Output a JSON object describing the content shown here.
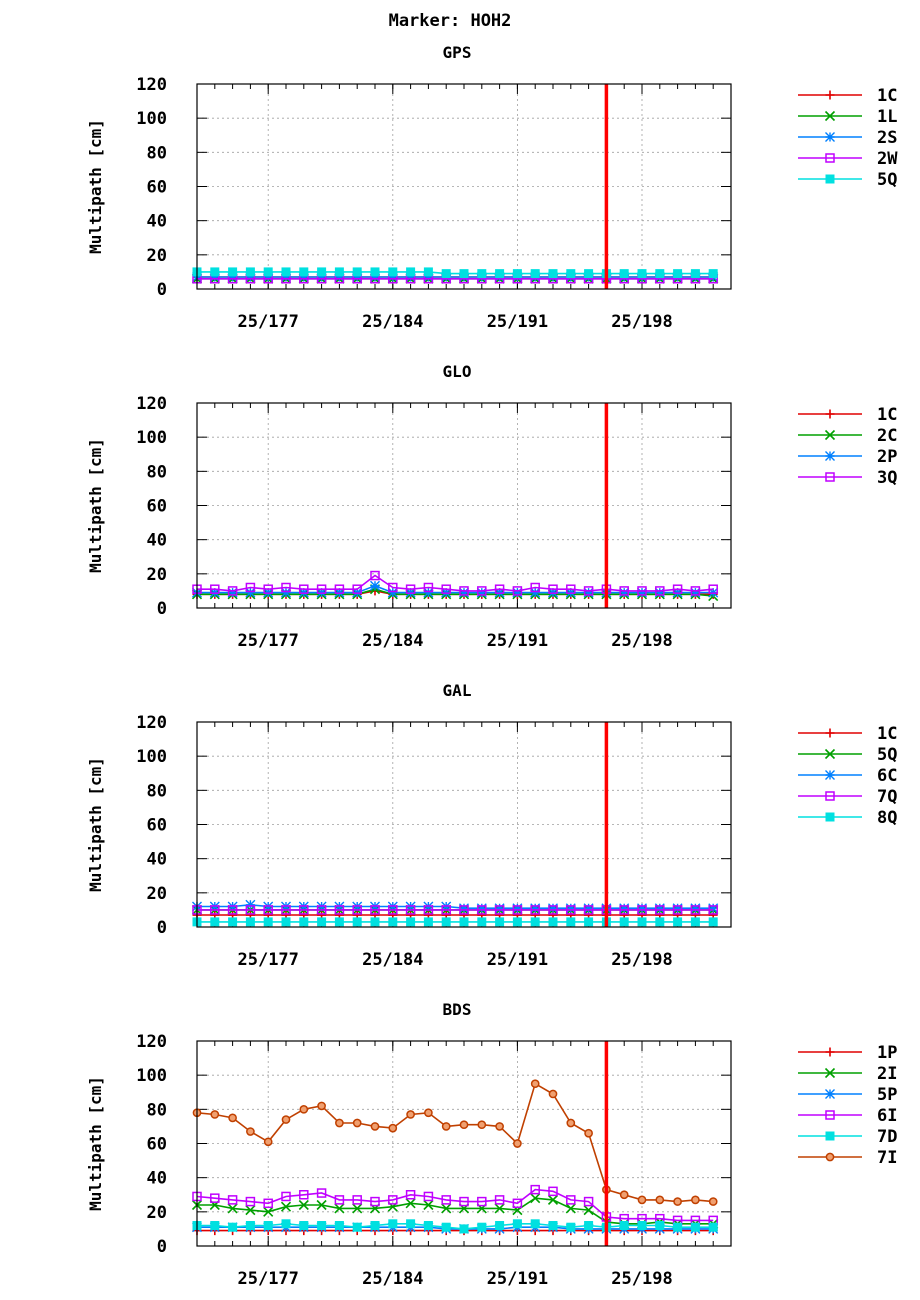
{
  "figure_title": "Marker: HOH2",
  "colors": {
    "red": "#e00000",
    "green": "#00a000",
    "blue": "#0080ff",
    "magenta": "#c000ff",
    "cyan": "#00e0e0",
    "brown": "#c04000",
    "marker_line": "#ff0000",
    "grid": "#a0a0a0"
  },
  "chart_data": [
    {
      "type": "line",
      "title": "GPS",
      "ylabel": "Multipath [cm]",
      "xlabel": "",
      "xlim": [
        173,
        203
      ],
      "ylim": [
        0,
        120
      ],
      "xticks": [
        177,
        184,
        191,
        198
      ],
      "xtick_labels": [
        "25/177",
        "25/184",
        "25/191",
        "25/198"
      ],
      "yticks": [
        0,
        20,
        40,
        60,
        80,
        100,
        120
      ],
      "ytick_labels": [
        "0",
        "20",
        "40",
        "60",
        "80",
        "100",
        "120"
      ],
      "vline": 196,
      "grid": true,
      "legend_position": "right",
      "x": [
        173,
        174,
        175,
        176,
        177,
        178,
        179,
        180,
        181,
        182,
        183,
        184,
        185,
        186,
        187,
        188,
        189,
        190,
        191,
        192,
        193,
        194,
        195,
        196,
        197,
        198,
        199,
        200,
        201,
        202
      ],
      "series": [
        {
          "name": "1C",
          "color": "red",
          "marker": "plus",
          "values": [
            7,
            7,
            7,
            7,
            7,
            7,
            7,
            7,
            7,
            7,
            7,
            7,
            7,
            7,
            7,
            7,
            7,
            7,
            7,
            7,
            7,
            7,
            7,
            7,
            7,
            7,
            7,
            7,
            7,
            7
          ]
        },
        {
          "name": "1L",
          "color": "green",
          "marker": "x",
          "values": [
            6,
            6,
            6,
            6,
            6,
            6,
            6,
            6,
            6,
            6,
            6,
            6,
            6,
            6,
            6,
            6,
            6,
            6,
            6,
            6,
            6,
            6,
            6,
            6,
            6,
            6,
            6,
            6,
            6,
            6
          ]
        },
        {
          "name": "2S",
          "color": "blue",
          "marker": "asterisk",
          "values": [
            7,
            7,
            7,
            7,
            7,
            7,
            7,
            7,
            7,
            7,
            7,
            7,
            7,
            7,
            7,
            7,
            7,
            7,
            7,
            7,
            7,
            7,
            7,
            7,
            7,
            7,
            7,
            7,
            7,
            7
          ]
        },
        {
          "name": "2W",
          "color": "magenta",
          "marker": "open-square",
          "values": [
            6,
            6,
            6,
            6,
            6,
            6,
            6,
            6,
            6,
            6,
            6,
            6,
            6,
            6,
            6,
            6,
            6,
            6,
            6,
            6,
            6,
            6,
            6,
            6,
            6,
            6,
            6,
            6,
            6,
            6
          ]
        },
        {
          "name": "5Q",
          "color": "cyan",
          "marker": "filled-square",
          "values": [
            10,
            10,
            10,
            10,
            10,
            10,
            10,
            10,
            10,
            10,
            10,
            10,
            10,
            10,
            9,
            9,
            9,
            9,
            9,
            9,
            9,
            9,
            9,
            9,
            9,
            9,
            9,
            9,
            9,
            9
          ]
        }
      ]
    },
    {
      "type": "line",
      "title": "GLO",
      "ylabel": "Multipath [cm]",
      "xlabel": "",
      "xlim": [
        173,
        203
      ],
      "ylim": [
        0,
        120
      ],
      "xticks": [
        177,
        184,
        191,
        198
      ],
      "xtick_labels": [
        "25/177",
        "25/184",
        "25/191",
        "25/198"
      ],
      "yticks": [
        0,
        20,
        40,
        60,
        80,
        100,
        120
      ],
      "ytick_labels": [
        "0",
        "20",
        "40",
        "60",
        "80",
        "100",
        "120"
      ],
      "vline": 196,
      "grid": true,
      "legend_position": "right",
      "x": [
        173,
        174,
        175,
        176,
        177,
        178,
        179,
        180,
        181,
        182,
        183,
        184,
        185,
        186,
        187,
        188,
        189,
        190,
        191,
        192,
        193,
        194,
        195,
        196,
        197,
        198,
        199,
        200,
        201,
        202
      ],
      "series": [
        {
          "name": "1C",
          "color": "red",
          "marker": "plus",
          "values": [
            8,
            8,
            8,
            8,
            8,
            8,
            8,
            8,
            8,
            8,
            10,
            8,
            8,
            8,
            8,
            8,
            8,
            8,
            8,
            8,
            8,
            8,
            8,
            8,
            8,
            8,
            8,
            8,
            8,
            8
          ]
        },
        {
          "name": "2C",
          "color": "green",
          "marker": "x",
          "values": [
            8,
            8,
            8,
            8,
            8,
            8,
            8,
            8,
            8,
            8,
            11,
            8,
            8,
            8,
            8,
            8,
            8,
            8,
            8,
            8,
            8,
            8,
            8,
            8,
            8,
            8,
            8,
            8,
            8,
            7
          ]
        },
        {
          "name": "2P",
          "color": "blue",
          "marker": "asterisk",
          "values": [
            9,
            9,
            9,
            9,
            9,
            9,
            9,
            9,
            9,
            9,
            13,
            9,
            9,
            9,
            9,
            9,
            9,
            9,
            9,
            9,
            9,
            9,
            9,
            9,
            9,
            9,
            9,
            9,
            9,
            9
          ]
        },
        {
          "name": "3Q",
          "color": "magenta",
          "marker": "open-square",
          "values": [
            11,
            11,
            10,
            12,
            11,
            12,
            11,
            11,
            11,
            11,
            19,
            12,
            11,
            12,
            11,
            10,
            10,
            11,
            10,
            12,
            11,
            11,
            10,
            11,
            10,
            10,
            10,
            11,
            10,
            11
          ]
        }
      ]
    },
    {
      "type": "line",
      "title": "GAL",
      "ylabel": "Multipath [cm]",
      "xlabel": "",
      "xlim": [
        173,
        203
      ],
      "ylim": [
        0,
        120
      ],
      "xticks": [
        177,
        184,
        191,
        198
      ],
      "xtick_labels": [
        "25/177",
        "25/184",
        "25/191",
        "25/198"
      ],
      "yticks": [
        0,
        20,
        40,
        60,
        80,
        100,
        120
      ],
      "ytick_labels": [
        "0",
        "20",
        "40",
        "60",
        "80",
        "100",
        "120"
      ],
      "vline": 196,
      "grid": true,
      "legend_position": "right",
      "x": [
        173,
        174,
        175,
        176,
        177,
        178,
        179,
        180,
        181,
        182,
        183,
        184,
        185,
        186,
        187,
        188,
        189,
        190,
        191,
        192,
        193,
        194,
        195,
        196,
        197,
        198,
        199,
        200,
        201,
        202
      ],
      "series": [
        {
          "name": "1C",
          "color": "red",
          "marker": "plus",
          "values": [
            7,
            7,
            7,
            7,
            7,
            7,
            7,
            7,
            7,
            7,
            7,
            7,
            7,
            7,
            7,
            7,
            7,
            7,
            7,
            7,
            7,
            7,
            7,
            7,
            7,
            7,
            7,
            7,
            7,
            7
          ]
        },
        {
          "name": "5Q",
          "color": "green",
          "marker": "x",
          "values": [
            10,
            10,
            10,
            10,
            10,
            10,
            10,
            10,
            10,
            10,
            10,
            10,
            10,
            10,
            10,
            10,
            10,
            10,
            10,
            10,
            10,
            10,
            10,
            10,
            10,
            10,
            10,
            10,
            10,
            10
          ]
        },
        {
          "name": "6C",
          "color": "blue",
          "marker": "asterisk",
          "values": [
            12,
            12,
            12,
            13,
            12,
            12,
            12,
            12,
            12,
            12,
            12,
            12,
            12,
            12,
            12,
            11,
            11,
            11,
            11,
            11,
            11,
            11,
            11,
            11,
            11,
            11,
            11,
            11,
            11,
            11
          ]
        },
        {
          "name": "7Q",
          "color": "magenta",
          "marker": "open-square",
          "values": [
            10,
            10,
            10,
            10,
            10,
            10,
            10,
            10,
            10,
            10,
            10,
            10,
            10,
            10,
            10,
            10,
            10,
            10,
            10,
            10,
            10,
            10,
            10,
            10,
            10,
            10,
            10,
            10,
            10,
            10
          ]
        },
        {
          "name": "8Q",
          "color": "cyan",
          "marker": "filled-square",
          "values": [
            3,
            3,
            3,
            3,
            3,
            3,
            3,
            3,
            3,
            3,
            3,
            3,
            3,
            3,
            3,
            3,
            3,
            3,
            3,
            3,
            3,
            3,
            3,
            3,
            3,
            3,
            3,
            3,
            3,
            3
          ]
        }
      ]
    },
    {
      "type": "line",
      "title": "BDS",
      "ylabel": "Multipath [cm]",
      "xlabel": "",
      "xlim": [
        173,
        203
      ],
      "ylim": [
        0,
        120
      ],
      "xticks": [
        177,
        184,
        191,
        198
      ],
      "xtick_labels": [
        "25/177",
        "25/184",
        "25/191",
        "25/198"
      ],
      "yticks": [
        0,
        20,
        40,
        60,
        80,
        100,
        120
      ],
      "ytick_labels": [
        "0",
        "20",
        "40",
        "60",
        "80",
        "100",
        "120"
      ],
      "vline": 196,
      "grid": true,
      "legend_position": "right",
      "x": [
        173,
        174,
        175,
        176,
        177,
        178,
        179,
        180,
        181,
        182,
        183,
        184,
        185,
        186,
        187,
        188,
        189,
        190,
        191,
        192,
        193,
        194,
        195,
        196,
        197,
        198,
        199,
        200,
        201,
        202
      ],
      "series": [
        {
          "name": "1P",
          "color": "red",
          "marker": "plus",
          "values": [
            9,
            9,
            9,
            9,
            9,
            9,
            9,
            9,
            9,
            9,
            9,
            9,
            9,
            9,
            9,
            9,
            9,
            9,
            9,
            9,
            9,
            9,
            9,
            9,
            9,
            9,
            9,
            9,
            9,
            9
          ]
        },
        {
          "name": "2I",
          "color": "green",
          "marker": "x",
          "values": [
            24,
            24,
            22,
            21,
            20,
            23,
            24,
            24,
            22,
            22,
            22,
            23,
            25,
            24,
            22,
            22,
            22,
            22,
            21,
            28,
            27,
            22,
            21,
            14,
            13,
            13,
            14,
            13,
            13,
            13
          ]
        },
        {
          "name": "5P",
          "color": "blue",
          "marker": "asterisk",
          "values": [
            11,
            11,
            11,
            11,
            11,
            11,
            11,
            11,
            11,
            11,
            11,
            11,
            11,
            11,
            10,
            10,
            10,
            10,
            11,
            11,
            11,
            10,
            10,
            10,
            10,
            10,
            10,
            10,
            10,
            10
          ]
        },
        {
          "name": "6I",
          "color": "magenta",
          "marker": "open-square",
          "values": [
            29,
            28,
            27,
            26,
            25,
            29,
            30,
            31,
            27,
            27,
            26,
            27,
            30,
            29,
            27,
            26,
            26,
            27,
            25,
            33,
            32,
            27,
            26,
            17,
            16,
            16,
            16,
            15,
            15,
            15
          ]
        },
        {
          "name": "7D",
          "color": "cyan",
          "marker": "filled-square",
          "values": [
            12,
            12,
            11,
            12,
            12,
            13,
            12,
            12,
            12,
            11,
            12,
            13,
            13,
            12,
            11,
            10,
            11,
            12,
            13,
            13,
            12,
            11,
            12,
            11,
            12,
            12,
            12,
            11,
            11,
            11
          ]
        },
        {
          "name": "7I",
          "color": "brown",
          "marker": "circle",
          "values": [
            78,
            77,
            75,
            67,
            61,
            74,
            80,
            82,
            72,
            72,
            70,
            69,
            77,
            78,
            70,
            71,
            71,
            70,
            60,
            95,
            89,
            72,
            66,
            33,
            30,
            27,
            27,
            26,
            27,
            26
          ]
        }
      ]
    }
  ]
}
